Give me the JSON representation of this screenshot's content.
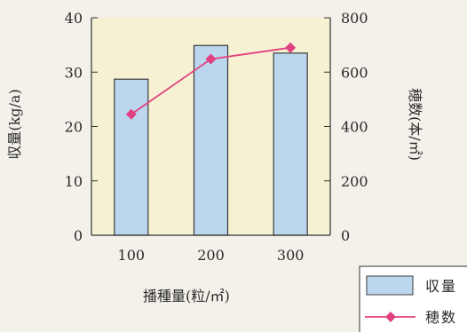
{
  "chart_data": {
    "type": "bar",
    "categories": [
      "100",
      "200",
      "300"
    ],
    "xlabel": "播種量(粒/㎡)",
    "ylabel": "収量(kg/a)",
    "y2label": "穂数(本/㎡)",
    "ylim": [
      0,
      40
    ],
    "y2lim": [
      0,
      800
    ],
    "yticks": [
      "0",
      "10",
      "20",
      "30",
      "40"
    ],
    "y2ticks": [
      "0",
      "200",
      "400",
      "600",
      "800"
    ],
    "grid": false,
    "legend_position": "bottom-right",
    "series": [
      {
        "name": "収量",
        "type": "bar",
        "axis": "left",
        "values": [
          28.7,
          34.9,
          33.5
        ],
        "color": "#bcd6ee",
        "edge": "#3a3a3a"
      },
      {
        "name": "穂数",
        "type": "line",
        "axis": "right",
        "values": [
          445,
          648,
          690
        ],
        "color": "#e0407f"
      }
    ],
    "plot_background": "#f6f1d2"
  }
}
